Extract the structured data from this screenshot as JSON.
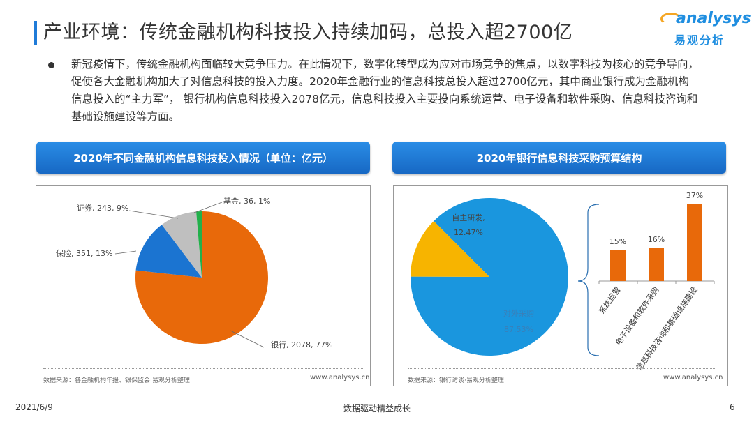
{
  "title": "产业环境：传统金融机构科技投入持续加码，总投入超2700亿",
  "logo": {
    "en": "analysys",
    "cn": "易观分析"
  },
  "body": "新冠疫情下，传统金融机构面临较大竞争压力。在此情况下，数字化转型成为应对市场竞争的焦点，以数字科技为核心的竞争导向，促使各大金融机构加大了对信息科技的投入力度。2020年金融行业的信息科技总投入超过2700亿元，其中商业银行成为金融机构信息投入的“主力军”， 银行机构信息科技投入2078亿元，信息科技投入主要投向系统运营、电子设备和软件采购、信息科技咨询和基础设施建设等方面。",
  "left_header": "2020年不同金融机构信息科技投入情况（单位：亿元）",
  "right_header": "2020年银行信息科技采购预算结构",
  "left_source": "数据来源：各金融机构年报、银保监会·易观分析整理",
  "right_source": "数据来源：银行访谈·易观分析整理",
  "url": "www.analysys.cn",
  "footer": {
    "date": "2021/6/9",
    "center": "数据驱动精益成长",
    "page": "6"
  },
  "chart_data": [
    {
      "type": "pie",
      "slices": [
        {
          "label": "银行",
          "value": 2078,
          "percent": "77%",
          "color": "#e8690a",
          "text": "银行, 2078, 77%"
        },
        {
          "label": "保险",
          "value": 351,
          "percent": "13%",
          "color": "#1b74d1",
          "text": "保险, 351, 13%"
        },
        {
          "label": "证券",
          "value": 243,
          "percent": "9%",
          "color": "#bfbfbf",
          "text": "证券, 243, 9%"
        },
        {
          "label": "基金",
          "value": 36,
          "percent": "1%",
          "color": "#22b04b",
          "text": "基金, 36, 1%"
        }
      ]
    },
    {
      "type": "pie",
      "slices": [
        {
          "label": "对外采购",
          "value": 87.53,
          "percent": "87.53%",
          "color": "#1a96de"
        },
        {
          "label": "自主研发",
          "value": 12.47,
          "percent": "12.47%",
          "color": "#f7b400"
        }
      ]
    },
    {
      "type": "bar",
      "categories": [
        "系统运营",
        "电子设备和软件采购",
        "信息科技咨询和基础设施建设"
      ],
      "values": [
        15,
        16,
        37
      ],
      "labels": [
        "15%",
        "16%",
        "37%"
      ],
      "color": "#e8690a"
    }
  ]
}
